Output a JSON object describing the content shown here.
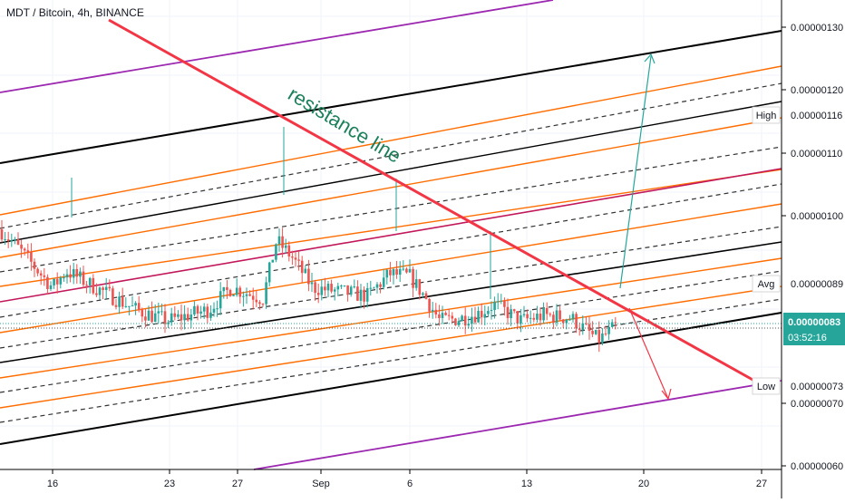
{
  "header": {
    "title": "MDT / Bitcoin, 4h, BINANCE"
  },
  "annotation": {
    "text": "resistance line"
  },
  "colors": {
    "up": "#26a69a",
    "down": "#ef5350",
    "resistance": "#f23645",
    "channel_black": "#000000",
    "channel_orange": "#ff6d00",
    "channel_red": "#c2185b",
    "channel_purple": "#9c27b0",
    "arrow_up": "#26a69a",
    "arrow_down": "#f23645",
    "current_price": "#26a69a",
    "grid": "#f0f3fa"
  },
  "chart_data": {
    "type": "candlestick",
    "symbol": "MDT / Bitcoin",
    "interval": "4h",
    "exchange": "BINANCE",
    "x_ticks": [
      "16",
      "23",
      "27",
      "Sep",
      "6",
      "13",
      "20",
      "27"
    ],
    "y_ticks": [
      "0.00000130",
      "0.00000120",
      "0.00000110",
      "0.00000100",
      "0.00000070",
      "0.00000060"
    ],
    "price_labels": [
      {
        "name": "High",
        "value": "0.00000116"
      },
      {
        "name": "Avg",
        "value": "0.00000089"
      },
      {
        "name": "Low",
        "value": "0.00000073"
      }
    ],
    "current_price": "0.00000083",
    "countdown": "03:52:16",
    "ylim": [
      6e-07,
      1.32e-06
    ]
  }
}
